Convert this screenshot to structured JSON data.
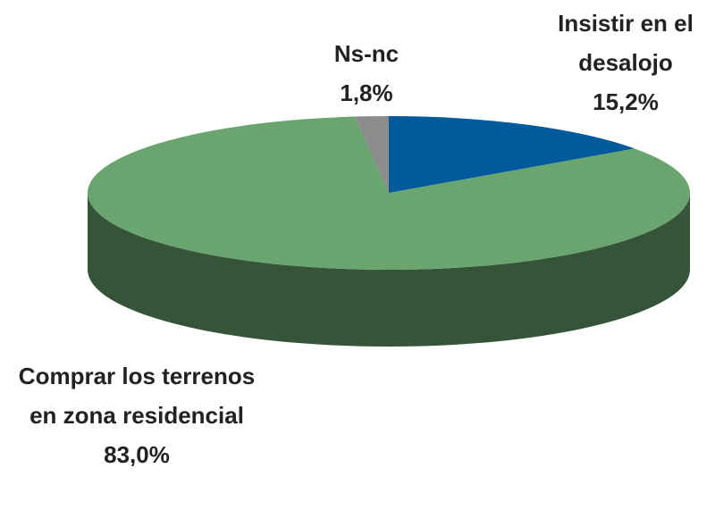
{
  "chart_data": {
    "type": "pie",
    "categories": [
      "Insistir en el desalojo",
      "Comprar los terrenos en zona residencial",
      "Ns-nc"
    ],
    "values": [
      15.2,
      83.0,
      1.8
    ],
    "value_labels": [
      "15,2%",
      "83,0%",
      "1,8%"
    ],
    "colors": [
      "#005a9c",
      "#6aa46f",
      "#8c8c8c"
    ],
    "side_colors": [
      "#003d6b",
      "#365437",
      "#5e5e5e"
    ]
  }
}
